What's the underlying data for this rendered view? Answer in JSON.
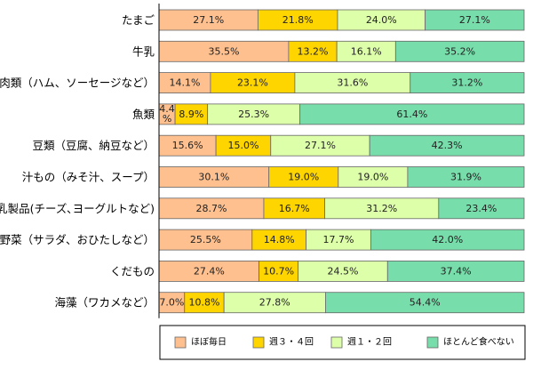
{
  "chart_data": {
    "type": "bar",
    "orientation": "horizontal",
    "stacked": true,
    "categories": [
      "たまご",
      "牛乳",
      "肉類（ハム、ソーセージなど）",
      "魚類",
      "豆類（豆腐、納豆など）",
      "汁もの（みそ汁、スープ）",
      "乳製品(チーズ､ヨーグルトなど)",
      "野菜（サラダ、おひたしなど）",
      "くだもの",
      "海藻（ワカメなど）"
    ],
    "series": [
      {
        "name": "ほぼ毎日",
        "color": "#FFC08F",
        "values": [
          27.1,
          35.5,
          14.1,
          4.4,
          15.6,
          30.1,
          28.7,
          25.5,
          27.4,
          7.0
        ],
        "labels": [
          "27.1%",
          "35.5%",
          "14.1%",
          "4.4%",
          "15.6%",
          "30.1%",
          "28.7%",
          "25.5%",
          "27.4%",
          "7.0%"
        ]
      },
      {
        "name": "週３・４回",
        "color": "#FFD500",
        "values": [
          21.8,
          13.2,
          23.1,
          8.9,
          15.0,
          19.0,
          16.7,
          14.8,
          10.7,
          10.8
        ],
        "labels": [
          "21.8%",
          "13.2%",
          "23.1%",
          "8.9%",
          "15.0%",
          "19.0%",
          "16.7%",
          "14.8%",
          "10.7%",
          "10.8%"
        ]
      },
      {
        "name": "週１・２回",
        "color": "#DDFFAA",
        "values": [
          24.0,
          16.1,
          31.6,
          25.3,
          27.1,
          19.0,
          31.2,
          17.7,
          24.5,
          27.8
        ],
        "labels": [
          "24.0%",
          "16.1%",
          "31.6%",
          "25.3%",
          "27.1%",
          "19.0%",
          "31.2%",
          "17.7%",
          "24.5%",
          "27.8%"
        ]
      },
      {
        "name": "ほとんど食べない",
        "color": "#77DDAA",
        "values": [
          27.1,
          35.2,
          31.2,
          61.4,
          42.3,
          31.9,
          23.4,
          42.0,
          37.4,
          54.4
        ],
        "labels": [
          "27.1%",
          "35.2%",
          "31.2%",
          "61.4%",
          "42.3%",
          "31.9%",
          "23.4%",
          "42.0%",
          "37.4%",
          "54.4%"
        ]
      }
    ],
    "xlim": [
      0,
      100
    ],
    "legend_position": "bottom",
    "grid": false
  }
}
